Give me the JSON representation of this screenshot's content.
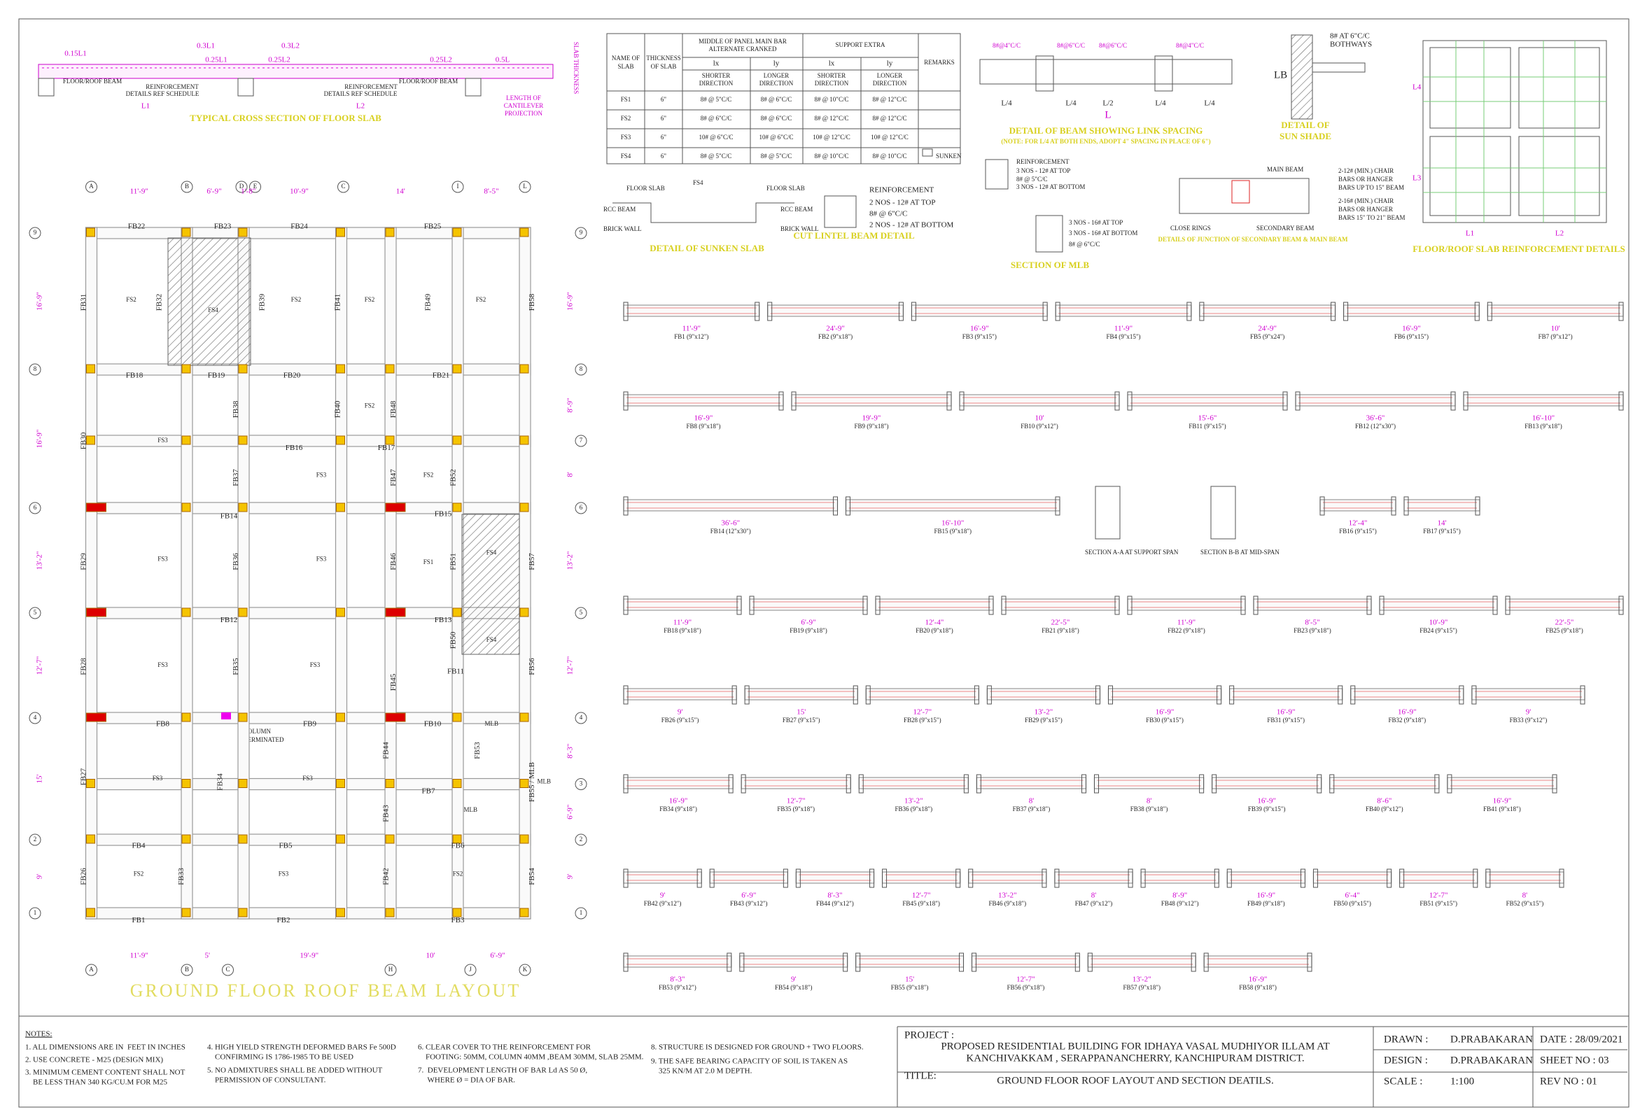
{
  "cross_section": {
    "title": "TYPICAL CROSS SECTION OF FLOOR SLAB",
    "labels": [
      "0.15L1",
      "0.3L1",
      "0.25L1",
      "0.3L2",
      "0.25L2",
      "0.25L2",
      "0.5L",
      "FLOOR/ROOF BEAM",
      "REINFORCEMENT",
      "DETAILS REF SCHEDULE",
      "REINFORCEMENT",
      "DETAILS REF SCHEDULE",
      "FLOOR/ROOF BEAM",
      "L1",
      "L2",
      "LENGTH OF",
      "CANTILEVER",
      "PROJECTION",
      "SLAB THICKNESS"
    ]
  },
  "slab_table": {
    "headers": {
      "name": [
        "NAME OF",
        "SLAB"
      ],
      "thickness": [
        "THICKNESS",
        "OF SLAB"
      ],
      "middle": [
        "MIDDLE OF PANEL MAIN BAR",
        "ALTERNATE CRANKED"
      ],
      "support": "SUPPORT EXTRA",
      "remarks": "REMARKS",
      "lx": "lx",
      "ly": "ly",
      "shorter": [
        "SHORTER",
        "DIRECTION"
      ],
      "longer": [
        "LONGER",
        "DIRECTION"
      ]
    },
    "rows": [
      [
        "FS1",
        "6\"",
        "8# @ 5\"C/C",
        "8# @ 6\"C/C",
        "8# @ 10\"C/C",
        "8# @ 12\"C/C"
      ],
      [
        "FS2",
        "6\"",
        "8# @ 6\"C/C",
        "8# @ 6\"C/C",
        "8# @ 12\"C/C",
        "8# @ 12\"C/C"
      ],
      [
        "FS3",
        "6\"",
        "10# @ 6\"C/C",
        "10# @ 6\"C/C",
        "10# @ 12\"C/C",
        "10# @ 12\"C/C"
      ],
      [
        "FS4",
        "6\"",
        "8# @ 5\"C/C",
        "8# @ 5\"C/C",
        "8# @ 10\"C/C",
        "8# @ 10\"C/C"
      ]
    ],
    "remark_fs4": "SUNKEN"
  },
  "link_detail": {
    "title": "DETAIL OF BEAM SHOWING LINK SPACING",
    "note": "(NOTE: FOR L/4 AT BOTH ENDS, ADOPT 4\" SPACING IN PLACE OF 6\")",
    "dims": [
      "L/4",
      "L/4",
      "L/2",
      "L/4",
      "L/4",
      "L"
    ],
    "spacing": [
      "8#@4\"C/C",
      "8#@6\"C/C",
      "8#@6\"C/C",
      "8#@4\"C/C"
    ]
  },
  "sun_shade": {
    "bars": "8# AT 6\"C/C",
    "bars2": "BOTHWAYS",
    "lb": "LB",
    "title": [
      "DETAIL OF",
      "SUN SHADE"
    ]
  },
  "slab_reinf": {
    "title": "FLOOR/ROOF SLAB REINFORCEMENT DETAILS",
    "labels": [
      "L4",
      "L3",
      "L1",
      "L2"
    ]
  },
  "sunken": {
    "title": "DETAIL OF SUNKEN SLAB",
    "labels": [
      "FLOOR SLAB",
      "FS4",
      "FLOOR SLAB",
      "RCC BEAM",
      "RCC BEAM",
      "BRICK WALL",
      "BRICK WALL"
    ]
  },
  "cut_lintel": {
    "title": "CUT LINTEL BEAM DETAIL",
    "lines": [
      "REINFORCEMENT",
      "2 NOS - 12# AT TOP",
      "8# @ 6\"C/C",
      "2 NOS - 12# AT BOTTOM"
    ]
  },
  "mlb": {
    "lines": [
      "REINFORCEMENT",
      "3 NOS - 12# AT TOP",
      "8# @ 5\"C/C",
      "3 NOS - 12# AT BOTTOM"
    ],
    "lines2": [
      "3 NOS - 16# AT TOP",
      "3 NOS - 16# AT BOTTOM",
      "8# @ 6\"C/C"
    ],
    "title": "SECTION OF MLB"
  },
  "junction": {
    "labels": [
      "MAIN BEAM",
      "2-12# (MIN.) CHAIR",
      "BARS OR HANGER",
      "BARS UP TO 15\" BEAM",
      "2-16# (MIN.) CHAIR",
      "BARS OR HANGER",
      "BARS 15\" TO 21\" BEAM",
      "CLOSE RINGS",
      "SECONDARY BEAM"
    ],
    "title": "DETAILS OF JUNCTION OF SECONDARY BEAM & MAIN BEAM"
  },
  "sections": {
    "a": "SECTION A-A AT SUPPORT SPAN",
    "b": "SECTION B-B AT MID-SPAN"
  },
  "plan": {
    "title": "GROUND FLOOR ROOF BEAM LAYOUT",
    "column_note": [
      "COLUMN",
      "TERMINATED"
    ],
    "col_top": [
      "A",
      "B",
      "D",
      "E",
      "C",
      "I",
      "L"
    ],
    "dims_top": [
      "11'-9\"",
      "6'-9\"",
      "1'-8\"",
      "10'-9\"",
      "14'",
      "8'-5\""
    ],
    "col_bottom": [
      "A",
      "B",
      "C",
      "H",
      "J",
      "K"
    ],
    "dims_bottom": [
      "11'-9\"",
      "5'",
      "19'-9\"",
      "10'",
      "6'-9\""
    ],
    "rows_left": [
      "9",
      "8",
      "6",
      "5",
      "4",
      "2",
      "1"
    ],
    "dims_left": [
      "16'-9\"",
      "16'-9\"",
      "13'-2\"",
      "12'-7\"",
      "15'",
      "9'"
    ],
    "rows_right": [
      "9",
      "8",
      "7",
      "6",
      "5",
      "4",
      "3",
      "2",
      "1"
    ],
    "dims_right": [
      "16'-9\"",
      "8'-9\"",
      "8'",
      "13'-2\"",
      "12'-7\"",
      "8'-3\"",
      "6'-9\"",
      "9'"
    ],
    "h_beams": [
      "FB22",
      "FB23",
      "FB24",
      "FB25",
      "FB18",
      "FB19",
      "FB20",
      "FB21",
      "FB16",
      "FB17",
      "FB14",
      "FB15",
      "FB12",
      "FB13",
      "FB11",
      "FB8",
      "FB9",
      "FB10",
      "FB7",
      "FB4",
      "FB5",
      "FB6",
      "FB1",
      "FB2",
      "FB3"
    ],
    "v_beams": [
      "FB31",
      "FB32",
      "FB39",
      "FB41",
      "FB49",
      "FB58",
      "FB30",
      "FB38",
      "FB40",
      "FB48",
      "FB37",
      "FB47",
      "FB52",
      "FB29",
      "FB36",
      "FB46",
      "FB51",
      "FB57",
      "FB28",
      "FB35",
      "FB45",
      "FB50",
      "FB56",
      "FB27",
      "FB34",
      "FB44",
      "FB53",
      "FB43",
      "FB55 / MLB",
      "FB26",
      "FB33",
      "FB42",
      "FB54"
    ],
    "slabs": [
      "FS2",
      "FS4",
      "FS2",
      "FS2",
      "FS2",
      "FS3",
      "FS2",
      "FS3",
      "FS2",
      "FS3",
      "FS3",
      "FS1",
      "FS4",
      "FS3",
      "FS3",
      "FS4",
      "FS3",
      "FS3",
      "FS2",
      "FS3",
      "FS2"
    ],
    "mlb": [
      "MLB",
      "MLB",
      "MLB"
    ]
  },
  "beam_schedule": [
    [
      [
        "FB1 (9\"x12\")",
        "11'-9\""
      ],
      [
        "FB2 (9\"x18\")",
        "24'-9\""
      ],
      [
        "FB3 (9\"x15\")",
        "16'-9\""
      ],
      [
        "FB4 (9\"x15\")",
        "11'-9\""
      ],
      [
        "FB5 (9\"x24\")",
        "24'-9\""
      ],
      [
        "FB6 (9\"x15\")",
        "16'-9\""
      ],
      [
        "FB7 (9\"x12\")",
        "10'"
      ]
    ],
    [
      [
        "FB8 (9\"x18\")",
        "16'-9\""
      ],
      [
        "FB9 (9\"x18\")",
        "19'-9\""
      ],
      [
        "FB10 (9\"x12\")",
        "10'"
      ],
      [
        "FB11 (9\"x15\")",
        "15'-6\""
      ],
      [
        "FB12 (12\"x30\")",
        "36'-6\""
      ],
      [
        "FB13 (9\"x18\")",
        "16'-10\""
      ]
    ],
    [
      [
        "FB14 (12\"x30\")",
        "36'-6\""
      ],
      [
        "FB15 (9\"x18\")",
        "16'-10\""
      ],
      [
        "FB16 (9\"x15\")",
        "12'-4\""
      ],
      [
        "FB17 (9\"x15\")",
        "14'"
      ]
    ],
    [
      [
        "FB18 (9\"x18\")",
        "11'-9\""
      ],
      [
        "FB19 (9\"x18\")",
        "6'-9\""
      ],
      [
        "FB20 (9\"x18\")",
        "12'-4\""
      ],
      [
        "FB21 (9\"x18\")",
        "22'-5\""
      ],
      [
        "FB22 (9\"x18\")",
        "11'-9\""
      ],
      [
        "FB23 (9\"x18\")",
        "8'-5\""
      ],
      [
        "FB24 (9\"x15\")",
        "10'-9\""
      ],
      [
        "FB25 (9\"x18\")",
        "22'-5\""
      ]
    ],
    [
      [
        "FB26 (9\"x15\")",
        "9'"
      ],
      [
        "FB27 (9\"x15\")",
        "15'"
      ],
      [
        "FB28 (9\"x15\")",
        "12'-7\""
      ],
      [
        "FB29 (9\"x15\")",
        "13'-2\""
      ],
      [
        "FB30 (9\"x15\")",
        "16'-9\""
      ],
      [
        "FB31 (9\"x15\")",
        "16'-9\""
      ],
      [
        "FB32 (9\"x18\")",
        "16'-9\""
      ],
      [
        "FB33 (9\"x12\")",
        "9'"
      ]
    ],
    [
      [
        "FB34 (9\"x18\")",
        "16'-9\""
      ],
      [
        "FB35 (9\"x18\")",
        "12'-7\""
      ],
      [
        "FB36 (9\"x18\")",
        "13'-2\""
      ],
      [
        "FB37 (9\"x18\")",
        "8'"
      ],
      [
        "FB38 (9\"x18\")",
        "8'"
      ],
      [
        "FB39 (9\"x15\")",
        "16'-9\""
      ],
      [
        "FB40 (9\"x12\")",
        "8'-6\""
      ],
      [
        "FB41 (9\"x18\")",
        "16'-9\""
      ]
    ],
    [
      [
        "FB42 (9\"x12\")",
        "9'"
      ],
      [
        "FB43 (9\"x12\")",
        "6'-9\""
      ],
      [
        "FB44 (9\"x12\")",
        "8'-3\""
      ],
      [
        "FB45 (9\"x18\")",
        "12'-7\""
      ],
      [
        "FB46 (9\"x18\")",
        "13'-2\""
      ],
      [
        "FB47 (9\"x12\")",
        "8'"
      ],
      [
        "FB48 (9\"x12\")",
        "8'-9\""
      ],
      [
        "FB49 (9\"x18\")",
        "16'-9\""
      ],
      [
        "FB50 (9\"x15\")",
        "6'-4\""
      ],
      [
        "FB51 (9\"x15\")",
        "12'-7\""
      ],
      [
        "FB52 (9\"x15\")",
        "8'"
      ]
    ],
    [
      [
        "FB53 (9\"x12\")",
        "8'-3\""
      ],
      [
        "FB54 (9\"x18\")",
        "9'"
      ],
      [
        "FB55 (9\"x18\")",
        "15'"
      ],
      [
        "FB56 (9\"x18\")",
        "12'-7\""
      ],
      [
        "FB57 (9\"x18\")",
        "13'-2\""
      ],
      [
        "FB58 (9\"x18\")",
        "16'-9\""
      ]
    ]
  ],
  "notes": {
    "heading": "NOTES:",
    "items": [
      [
        "1. ALL DIMENSIONS ARE IN  FEET IN INCHES"
      ],
      [
        "2. USE CONCRETE - M25 (DESIGN MIX)"
      ],
      [
        "3. MINIMUM CEMENT CONTENT SHALL NOT",
        "    BE LESS THAN 340 KG/CU.M FOR M25"
      ],
      [
        "4. HIGH YIELD STRENGTH DEFORMED BARS Fe 500D",
        "    CONFIRMING IS 1786-1985 TO BE USED"
      ],
      [
        "5. NO ADMIXTURES SHALL BE ADDED WITHOUT",
        "    PERMISSION OF CONSULTANT."
      ],
      [
        "6. CLEAR COVER TO THE REINFORCEMENT FOR",
        "    FOOTING: 50MM, COLUMN 40MM ,BEAM 30MM, SLAB 25MM."
      ],
      [
        "7.  DEVELOPMENT LENGTH OF BAR Ld AS 50 Ø,",
        "     WHERE Ø = DIA OF BAR."
      ],
      [
        "8. STRUCTURE IS DESIGNED FOR GROUND + TWO FLOORS."
      ],
      [
        "9. THE SAFE BEARING CAPACITY OF SOIL IS TAKEN AS",
        "    325 KN/M AT 2.0 M DEPTH."
      ]
    ]
  },
  "title_block": {
    "project_label": "PROJECT :",
    "project": [
      "PROPOSED RESIDENTIAL BUILDING FOR IDHAYA VASAL MUDHIYOR ILLAM  AT",
      "KANCHIVAKKAM , SERAPPANANCHERRY, KANCHIPURAM DISTRICT."
    ],
    "title_label": "TITLE:",
    "title": "GROUND FLOOR ROOF LAYOUT AND SECTION DEATILS.",
    "drawn_label": "DRAWN :",
    "drawn": "D.PRABAKARAN",
    "design_label": "DESIGN :",
    "design": "D.PRABAKARAN",
    "scale_label": "SCALE :",
    "scale": "1:100",
    "date": "DATE : 28/09/2021",
    "sheet": "SHEET NO : 03",
    "rev": "REV NO   : 01"
  }
}
